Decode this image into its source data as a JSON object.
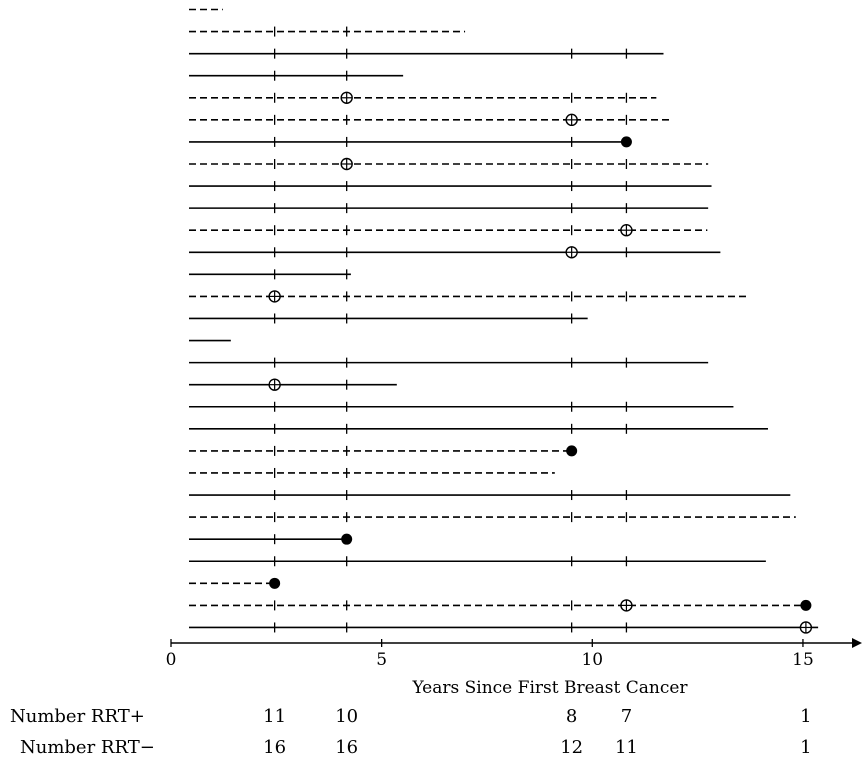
{
  "chart_data": {
    "type": "swimmer",
    "xlabel": "Years Since First Breast Cancer",
    "xlim": [
      0,
      16
    ],
    "xticks": [
      0,
      5,
      10,
      15
    ],
    "tick_marks_at": [
      2.46,
      4.17,
      9.51,
      10.81
    ],
    "legend": "none",
    "grid": false,
    "line_styles": {
      "solid": "RRT-",
      "dashed": "RRT+"
    },
    "marker_types": [
      "open-circle-plus",
      "filled-circle"
    ],
    "lanes": [
      {
        "end": 1.23,
        "style": "dashed",
        "events": []
      },
      {
        "end": 6.98,
        "style": "dashed",
        "events": []
      },
      {
        "end": 11.69,
        "style": "solid",
        "events": []
      },
      {
        "end": 5.51,
        "style": "solid",
        "events": []
      },
      {
        "end": 11.52,
        "style": "dashed",
        "events": [
          {
            "x": 4.17,
            "marker": "open-circle-plus"
          }
        ]
      },
      {
        "end": 11.85,
        "style": "dashed",
        "events": [
          {
            "x": 9.51,
            "marker": "open-circle-plus"
          }
        ]
      },
      {
        "end": 10.81,
        "style": "solid",
        "events": [
          {
            "x": 10.81,
            "marker": "filled-circle"
          }
        ]
      },
      {
        "end": 12.75,
        "style": "dashed",
        "events": [
          {
            "x": 4.17,
            "marker": "open-circle-plus"
          }
        ]
      },
      {
        "end": 12.83,
        "style": "solid",
        "events": []
      },
      {
        "end": 12.75,
        "style": "solid",
        "events": []
      },
      {
        "end": 12.73,
        "style": "dashed",
        "events": [
          {
            "x": 10.81,
            "marker": "open-circle-plus"
          }
        ]
      },
      {
        "end": 13.04,
        "style": "solid",
        "events": [
          {
            "x": 9.51,
            "marker": "open-circle-plus"
          }
        ]
      },
      {
        "end": 4.27,
        "style": "solid",
        "events": []
      },
      {
        "end": 13.66,
        "style": "dashed",
        "events": [
          {
            "x": 2.46,
            "marker": "open-circle-plus"
          }
        ]
      },
      {
        "end": 9.89,
        "style": "solid",
        "events": []
      },
      {
        "end": 1.42,
        "style": "solid",
        "events": []
      },
      {
        "end": 12.75,
        "style": "solid",
        "events": []
      },
      {
        "end": 5.36,
        "style": "solid",
        "events": [
          {
            "x": 2.46,
            "marker": "open-circle-plus"
          }
        ]
      },
      {
        "end": 13.35,
        "style": "solid",
        "events": []
      },
      {
        "end": 14.17,
        "style": "solid",
        "events": []
      },
      {
        "end": 9.51,
        "style": "dashed",
        "events": [
          {
            "x": 9.51,
            "marker": "filled-circle"
          }
        ]
      },
      {
        "end": 9.11,
        "style": "dashed",
        "events": []
      },
      {
        "end": 14.7,
        "style": "solid",
        "events": []
      },
      {
        "end": 14.83,
        "style": "dashed",
        "events": []
      },
      {
        "end": 4.17,
        "style": "solid",
        "events": [
          {
            "x": 4.17,
            "marker": "filled-circle"
          }
        ]
      },
      {
        "end": 14.12,
        "style": "solid",
        "events": []
      },
      {
        "end": 2.46,
        "style": "dashed",
        "events": [
          {
            "x": 2.46,
            "marker": "filled-circle"
          }
        ]
      },
      {
        "end": 15.07,
        "style": "dashed",
        "events": [
          {
            "x": 10.81,
            "marker": "open-circle-plus"
          },
          {
            "x": 15.07,
            "marker": "filled-circle"
          }
        ]
      },
      {
        "end": 15.36,
        "style": "solid",
        "events": [
          {
            "x": 15.07,
            "marker": "open-circle-plus"
          }
        ]
      }
    ],
    "risk_table": {
      "rows": [
        {
          "label": "Number RRT+",
          "cells": [
            {
              "x": 2.46,
              "value": "11"
            },
            {
              "x": 4.17,
              "value": "10"
            },
            {
              "x": 9.51,
              "value": "8"
            },
            {
              "x": 10.81,
              "value": "7"
            },
            {
              "x": 15.07,
              "value": "1"
            }
          ]
        },
        {
          "label": "Number RRT−",
          "cells": [
            {
              "x": 2.46,
              "value": "16"
            },
            {
              "x": 4.17,
              "value": "16"
            },
            {
              "x": 9.51,
              "value": "12"
            },
            {
              "x": 10.81,
              "value": "11"
            },
            {
              "x": 15.07,
              "value": "1"
            }
          ]
        }
      ]
    }
  }
}
